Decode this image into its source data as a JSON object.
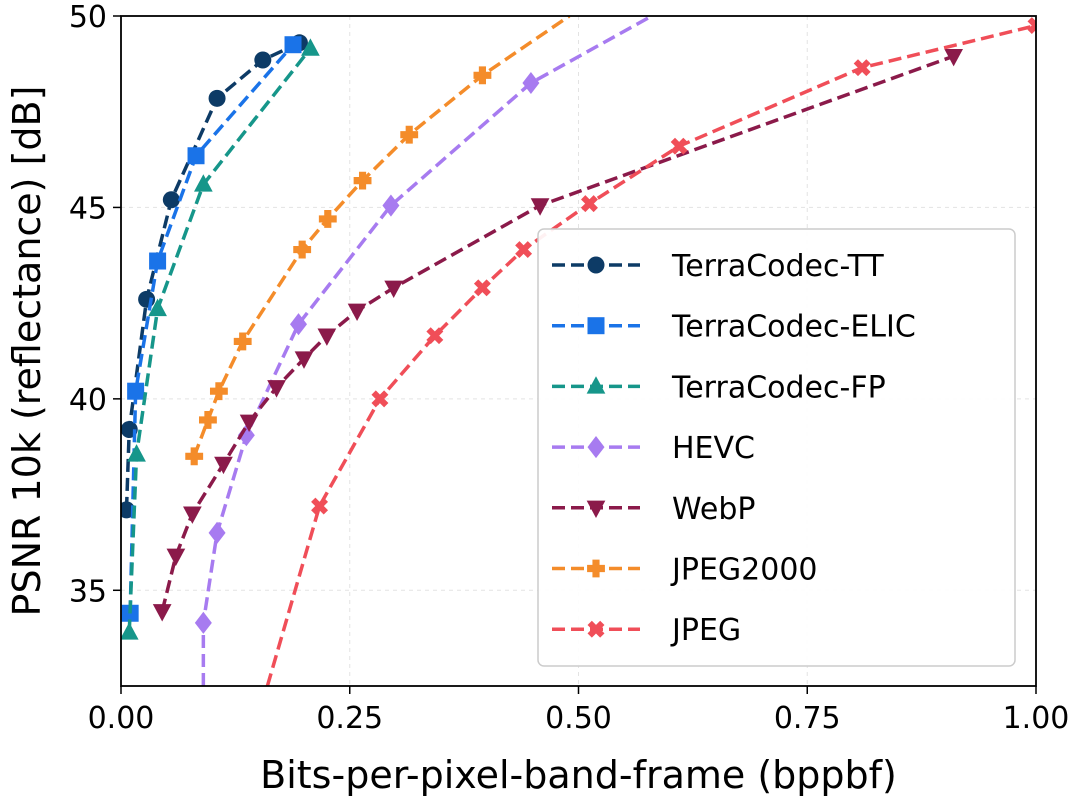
{
  "chart_data": {
    "type": "line",
    "xlabel": "Bits-per-pixel-band-frame (bppbf)",
    "ylabel": "PSNR 10k (reflectance) [dB]",
    "xlim": [
      0,
      1.0
    ],
    "ylim": [
      32.5,
      50
    ],
    "xticks": [
      "0.00",
      "0.25",
      "0.50",
      "0.75",
      "1.00"
    ],
    "xtick_values": [
      0,
      0.25,
      0.5,
      0.75,
      1.0
    ],
    "yticks": [
      "35",
      "40",
      "45",
      "50"
    ],
    "ytick_values": [
      35,
      40,
      45,
      50
    ],
    "grid": true,
    "legend_position": "center-right",
    "series": [
      {
        "name": "TerraCodec-TT",
        "color": "#0d3b66",
        "marker": "circle",
        "x": [
          0.006,
          0.009,
          0.028,
          0.055,
          0.105,
          0.155,
          0.195
        ],
        "y": [
          37.1,
          39.2,
          42.6,
          45.2,
          47.85,
          48.85,
          49.3
        ]
      },
      {
        "name": "TerraCodec-ELIC",
        "color": "#1a73e8",
        "marker": "square",
        "x": [
          0.01,
          0.016,
          0.04,
          0.082,
          0.188
        ],
        "y": [
          34.4,
          40.2,
          43.6,
          46.35,
          49.25
        ]
      },
      {
        "name": "TerraCodec-FP",
        "color": "#16968a",
        "marker": "triangle-up",
        "x": [
          0.009,
          0.017,
          0.04,
          0.09,
          0.207
        ],
        "y": [
          33.9,
          38.55,
          42.35,
          45.6,
          49.15
        ]
      },
      {
        "name": "HEVC",
        "color": "#a77bf0",
        "marker": "diamond",
        "x": [
          0.09,
          0.09,
          0.105,
          0.137,
          0.194,
          0.295,
          0.448,
          0.58
        ],
        "y": [
          32.5,
          34.15,
          36.5,
          39.05,
          41.95,
          45.05,
          48.25,
          50
        ]
      },
      {
        "name": "WebP",
        "color": "#8b1a4a",
        "marker": "triangle-down",
        "x": [
          0.045,
          0.06,
          0.078,
          0.112,
          0.14,
          0.17,
          0.2,
          0.225,
          0.258,
          0.298,
          0.458,
          0.91
        ],
        "y": [
          34.45,
          35.9,
          37.0,
          38.3,
          39.4,
          40.3,
          41.05,
          41.65,
          42.3,
          42.9,
          45.05,
          48.95
        ]
      },
      {
        "name": "JPEG2000",
        "color": "#f48c2a",
        "marker": "plus",
        "x": [
          0.08,
          0.095,
          0.107,
          0.133,
          0.198,
          0.226,
          0.264,
          0.315,
          0.395,
          0.49
        ],
        "y": [
          38.5,
          39.45,
          40.2,
          41.5,
          43.9,
          44.7,
          45.7,
          46.9,
          48.45,
          50
        ]
      },
      {
        "name": "JPEG",
        "color": "#f04e58",
        "marker": "x",
        "x": [
          0.16,
          0.217,
          0.283,
          0.343,
          0.395,
          0.44,
          0.512,
          0.61,
          0.81,
          1.0
        ],
        "y": [
          32.5,
          37.2,
          40.0,
          41.65,
          42.9,
          43.9,
          45.1,
          46.6,
          48.65,
          49.75
        ]
      }
    ]
  }
}
